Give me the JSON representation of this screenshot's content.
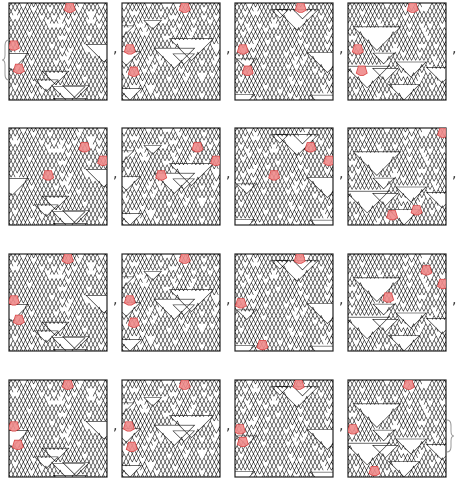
{
  "separator": ",",
  "colors": {
    "cell_stroke": "#111111",
    "highlight_fill": "#f08a8a",
    "highlight_stroke": "#d94a4a",
    "frame": "#222222"
  },
  "grid": {
    "rows": 4,
    "columns": 4,
    "panels": [
      {
        "highlights": [
          [
            0.62,
            0.04
          ],
          [
            0.05,
            0.43
          ],
          [
            0.1,
            0.67
          ]
        ]
      },
      {
        "highlights": [
          [
            0.64,
            0.04
          ],
          [
            0.08,
            0.47
          ],
          [
            0.12,
            0.7
          ]
        ]
      },
      {
        "highlights": [
          [
            0.67,
            0.04
          ],
          [
            0.08,
            0.47
          ],
          [
            0.13,
            0.69
          ]
        ]
      },
      {
        "highlights": [
          [
            0.66,
            0.04
          ],
          [
            0.1,
            0.47
          ],
          [
            0.14,
            0.69
          ]
        ]
      },
      {
        "highlights": [
          [
            0.77,
            0.19
          ],
          [
            0.96,
            0.33
          ],
          [
            0.4,
            0.48
          ]
        ]
      },
      {
        "highlights": [
          [
            0.77,
            0.19
          ],
          [
            0.96,
            0.33
          ],
          [
            0.4,
            0.48
          ]
        ]
      },
      {
        "highlights": [
          [
            0.77,
            0.19
          ],
          [
            0.96,
            0.33
          ],
          [
            0.4,
            0.48
          ]
        ]
      },
      {
        "highlights": [
          [
            0.97,
            0.04
          ],
          [
            0.7,
            0.84
          ],
          [
            0.45,
            0.89
          ]
        ]
      },
      {
        "highlights": [
          [
            0.6,
            0.04
          ],
          [
            0.05,
            0.47
          ],
          [
            0.1,
            0.67
          ]
        ]
      },
      {
        "highlights": [
          [
            0.64,
            0.04
          ],
          [
            0.08,
            0.47
          ],
          [
            0.12,
            0.7
          ]
        ]
      },
      {
        "highlights": [
          [
            0.66,
            0.04
          ],
          [
            0.06,
            0.5
          ],
          [
            0.28,
            0.93
          ]
        ]
      },
      {
        "highlights": [
          [
            0.8,
            0.16
          ],
          [
            0.97,
            0.3
          ],
          [
            0.41,
            0.44
          ]
        ]
      },
      {
        "highlights": [
          [
            0.6,
            0.04
          ],
          [
            0.05,
            0.47
          ],
          [
            0.09,
            0.66
          ]
        ]
      },
      {
        "highlights": [
          [
            0.64,
            0.04
          ],
          [
            0.07,
            0.47
          ],
          [
            0.1,
            0.68
          ]
        ]
      },
      {
        "highlights": [
          [
            0.65,
            0.04
          ],
          [
            0.05,
            0.5
          ],
          [
            0.08,
            0.63
          ]
        ]
      },
      {
        "highlights": [
          [
            0.62,
            0.04
          ],
          [
            0.05,
            0.5
          ],
          [
            0.27,
            0.93
          ]
        ]
      }
    ]
  }
}
